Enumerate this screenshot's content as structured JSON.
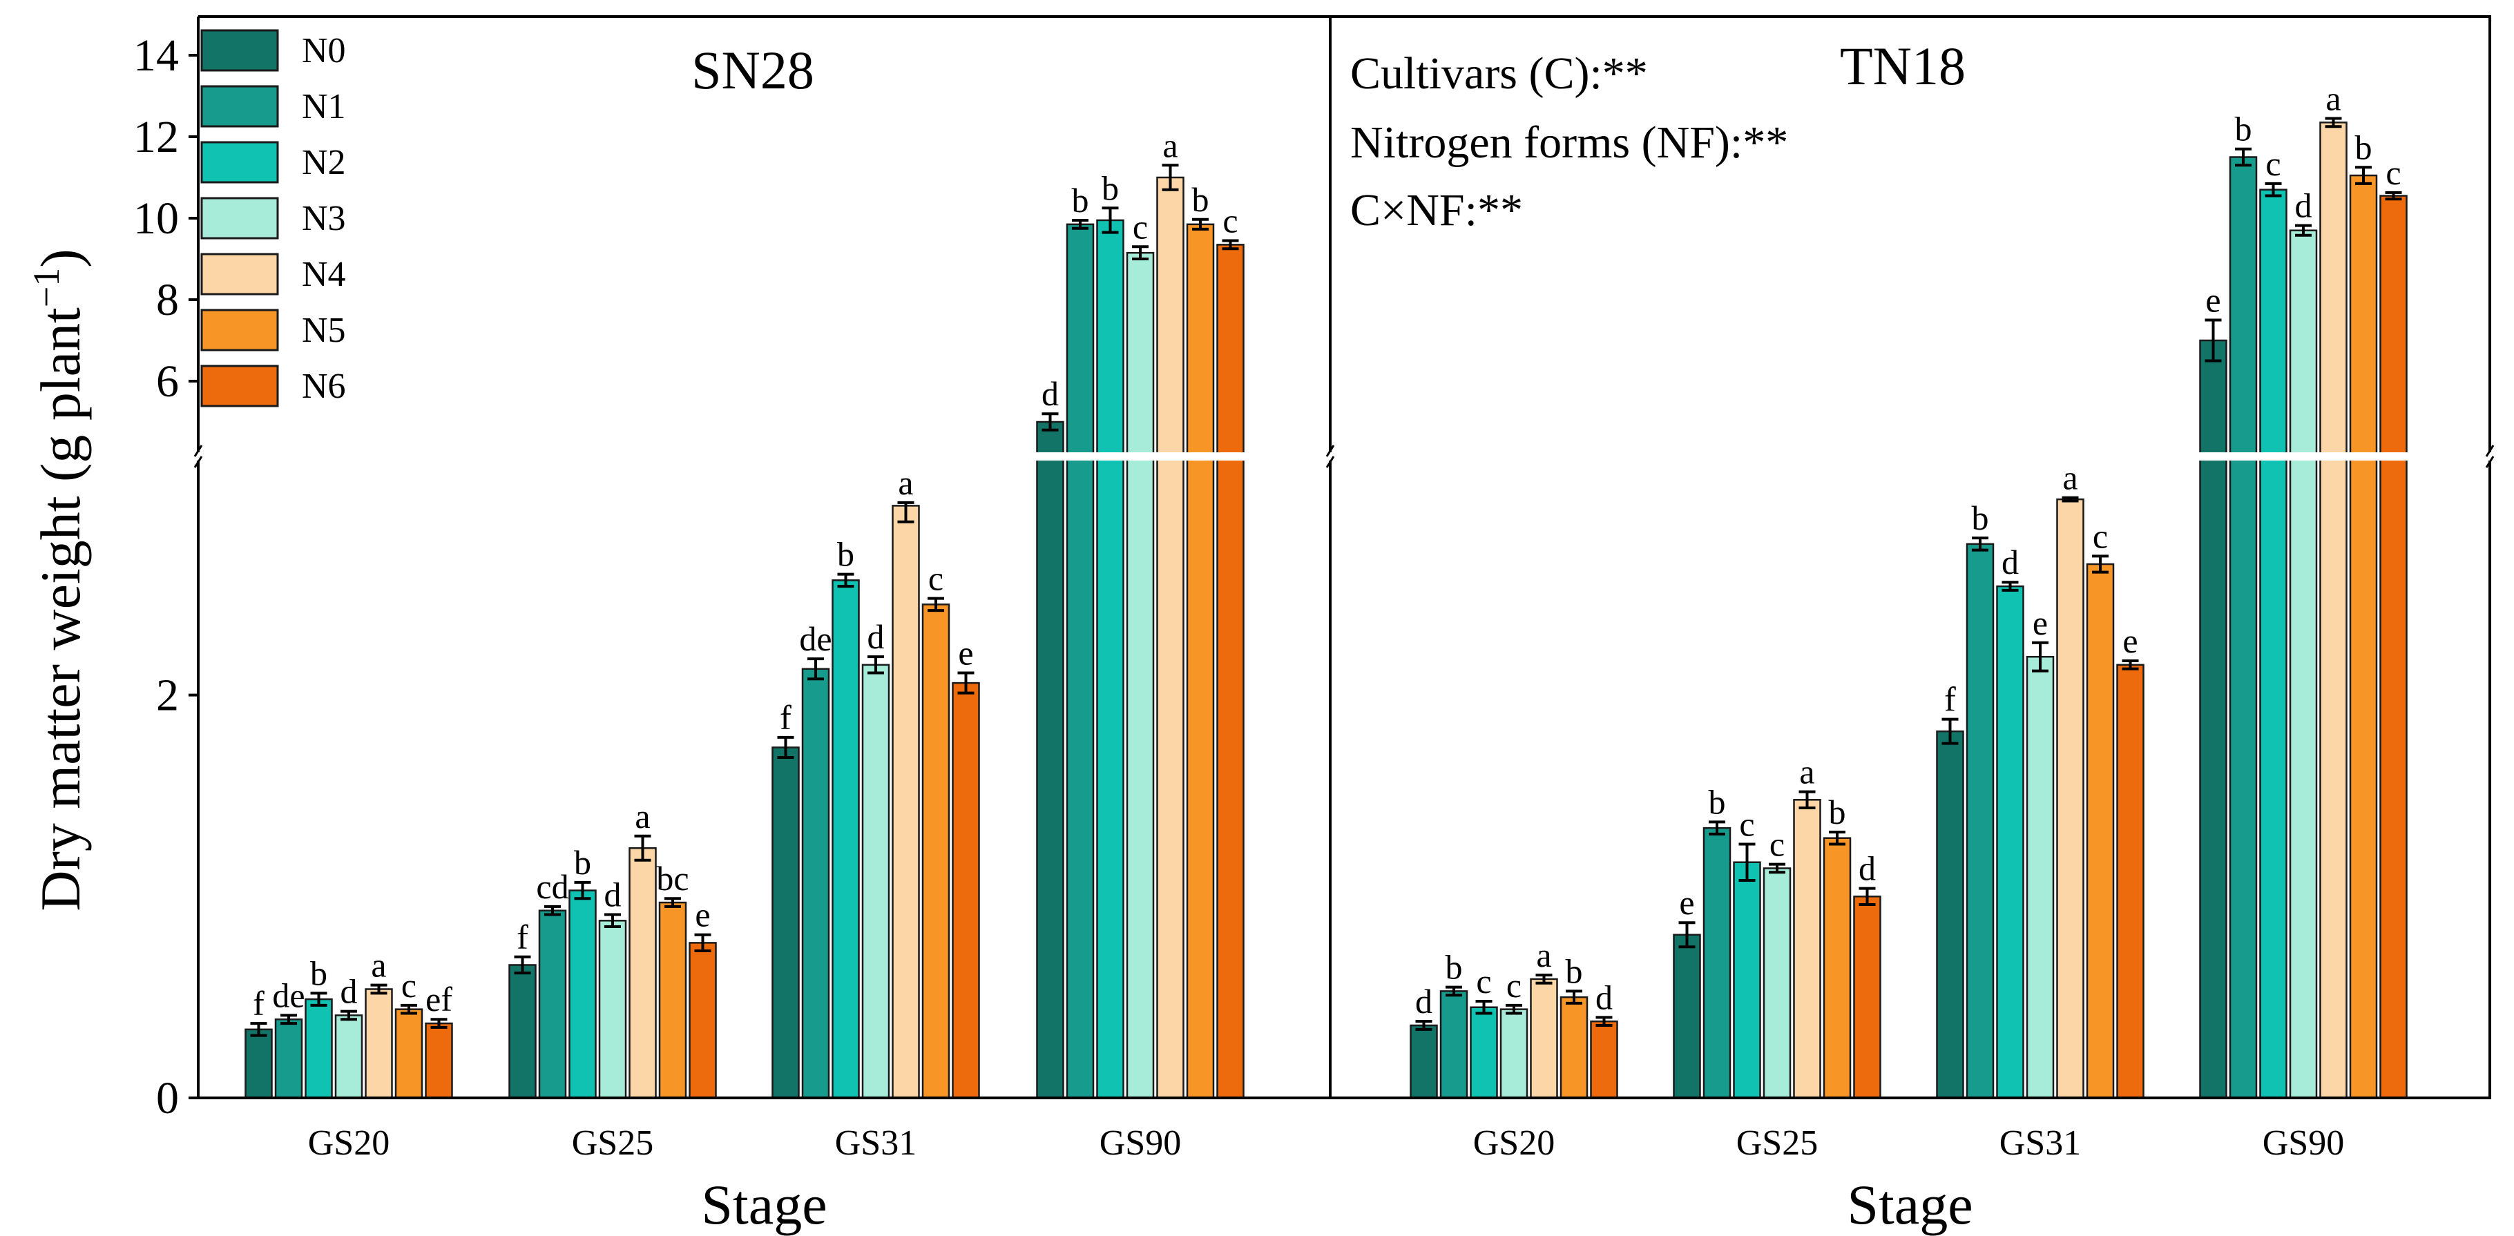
{
  "chart_data": {
    "type": "bar",
    "ylabel": "Dry matter weight (g plant",
    "ylabel_superscript": "−1",
    "ylabel_close": ")",
    "xlabel": "Stage",
    "y_axis_break": {
      "lower_range": [
        0,
        3
      ],
      "upper_range": [
        4.2,
        15
      ]
    },
    "y_ticks_lower": [
      0,
      2
    ],
    "y_ticks_upper": [
      6,
      8,
      10,
      12,
      14
    ],
    "stages": [
      "GS20",
      "GS25",
      "GS31",
      "GS90"
    ],
    "legend": [
      {
        "name": "N0",
        "color": "#117466"
      },
      {
        "name": "N1",
        "color": "#169b8c"
      },
      {
        "name": "N2",
        "color": "#0fc2b1"
      },
      {
        "name": "N3",
        "color": "#a6ecd9"
      },
      {
        "name": "N4",
        "color": "#fcd6a6"
      },
      {
        "name": "N5",
        "color": "#f89527"
      },
      {
        "name": "N6",
        "color": "#ee6b0d"
      }
    ],
    "stats": {
      "line1": "Cultivars (C):**",
      "line2": "Nitrogen forms (NF):**",
      "line3": "C×NF:**"
    },
    "panels": [
      {
        "title": "SN28",
        "groups": [
          {
            "stage": "GS20",
            "values": [
              0.34,
              0.39,
              0.49,
              0.41,
              0.54,
              0.44,
              0.37
            ],
            "errors": [
              0.03,
              0.02,
              0.03,
              0.02,
              0.02,
              0.02,
              0.02
            ],
            "letters": [
              "f",
              "de",
              "b",
              "d",
              "a",
              "c",
              "ef"
            ]
          },
          {
            "stage": "GS25",
            "values": [
              0.66,
              0.93,
              1.03,
              0.88,
              1.24,
              0.97,
              0.77
            ],
            "errors": [
              0.04,
              0.02,
              0.04,
              0.03,
              0.06,
              0.02,
              0.04
            ],
            "letters": [
              "f",
              "cd",
              "b",
              "d",
              "a",
              "bc",
              "e"
            ]
          },
          {
            "stage": "GS31",
            "values": [
              1.74,
              2.13,
              2.57,
              2.15,
              2.94,
              2.45,
              2.06
            ],
            "errors": [
              0.05,
              0.05,
              0.03,
              0.04,
              0.08,
              0.03,
              0.05
            ],
            "letters": [
              "f",
              "de",
              "b",
              "d",
              "a",
              "c",
              "e"
            ]
          },
          {
            "stage": "GS90",
            "values": [
              5.0,
              9.85,
              9.95,
              9.15,
              11.0,
              9.85,
              9.35
            ],
            "errors": [
              0.2,
              0.1,
              0.3,
              0.15,
              0.3,
              0.12,
              0.1
            ],
            "letters": [
              "d",
              "b",
              "b",
              "c",
              "a",
              "b",
              "c"
            ]
          }
        ]
      },
      {
        "title": "TN18",
        "groups": [
          {
            "stage": "GS20",
            "values": [
              0.36,
              0.53,
              0.45,
              0.44,
              0.59,
              0.5,
              0.38
            ],
            "errors": [
              0.02,
              0.02,
              0.03,
              0.02,
              0.02,
              0.03,
              0.02
            ],
            "letters": [
              "d",
              "b",
              "c",
              "c",
              "a",
              "b",
              "d"
            ]
          },
          {
            "stage": "GS25",
            "values": [
              0.81,
              1.34,
              1.17,
              1.14,
              1.48,
              1.29,
              1.0
            ],
            "errors": [
              0.06,
              0.03,
              0.09,
              0.02,
              0.04,
              0.03,
              0.04
            ],
            "letters": [
              "e",
              "b",
              "c",
              "c",
              "a",
              "b",
              "d"
            ]
          },
          {
            "stage": "GS31",
            "values": [
              1.82,
              2.75,
              2.54,
              2.19,
              3.1,
              2.65,
              2.15
            ],
            "errors": [
              0.06,
              0.03,
              0.02,
              0.07,
              0.04,
              0.04,
              0.02
            ],
            "letters": [
              "f",
              "b",
              "d",
              "e",
              "a",
              "c",
              "e"
            ]
          },
          {
            "stage": "GS90",
            "values": [
              7.0,
              11.5,
              10.7,
              9.7,
              12.35,
              11.05,
              10.55
            ],
            "errors": [
              0.5,
              0.2,
              0.15,
              0.12,
              0.1,
              0.2,
              0.08
            ],
            "letters": [
              "e",
              "b",
              "c",
              "d",
              "a",
              "b",
              "c"
            ]
          }
        ]
      }
    ]
  }
}
